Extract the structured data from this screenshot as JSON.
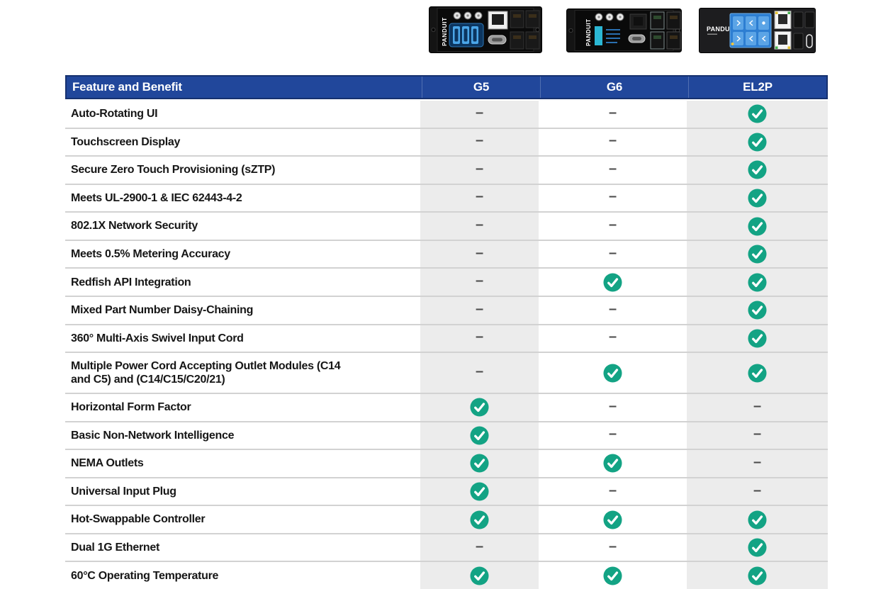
{
  "colors": {
    "page_bg": "#ffffff",
    "header_bg": "#21479b",
    "header_border": "#16316f",
    "header_text": "#ffffff",
    "row_alt_bg": "#ececec",
    "row_border": "#d2d2d2",
    "check_green": "#13a384",
    "check_mark": "#ffffff",
    "dash_color": "#4a4a4a",
    "feature_text": "#161616"
  },
  "icons": {
    "yes": "check-icon",
    "no": "dash-icon",
    "check_glyph": "✓",
    "dash_glyph": "–"
  },
  "products": [
    {
      "brand": "PANDUIT"
    },
    {
      "brand": "PANDUIT"
    },
    {
      "brand": "PANDUIT"
    }
  ],
  "table": {
    "header": {
      "feature": "Feature and Benefit",
      "columns": [
        "G5",
        "G6",
        "EL2P"
      ]
    },
    "rows": [
      {
        "feature": "Auto-Rotating UI",
        "values": [
          "no",
          "no",
          "yes"
        ]
      },
      {
        "feature": "Touchscreen Display",
        "values": [
          "no",
          "no",
          "yes"
        ]
      },
      {
        "feature": "Secure Zero Touch Provisioning (sZTP)",
        "values": [
          "no",
          "no",
          "yes"
        ]
      },
      {
        "feature": "Meets UL-2900-1 & IEC 62443-4-2",
        "values": [
          "no",
          "no",
          "yes"
        ]
      },
      {
        "feature": "802.1X Network Security",
        "values": [
          "no",
          "no",
          "yes"
        ]
      },
      {
        "feature": "Meets 0.5% Metering Accuracy",
        "values": [
          "no",
          "no",
          "yes"
        ]
      },
      {
        "feature": "Redfish API Integration",
        "values": [
          "no",
          "yes",
          "yes"
        ]
      },
      {
        "feature": "Mixed Part Number Daisy-Chaining",
        "values": [
          "no",
          "no",
          "yes"
        ]
      },
      {
        "feature": "360° Multi-Axis Swivel Input Cord",
        "values": [
          "no",
          "no",
          "yes"
        ]
      },
      {
        "feature": "Multiple Power Cord Accepting Outlet Modules (C14 and C5) and (C14/C15/C20/21)",
        "values": [
          "no",
          "yes",
          "yes"
        ],
        "tall": true
      },
      {
        "feature": "Horizontal Form Factor",
        "values": [
          "yes",
          "no",
          "no"
        ]
      },
      {
        "feature": "Basic Non-Network Intelligence",
        "values": [
          "yes",
          "no",
          "no"
        ]
      },
      {
        "feature": "NEMA Outlets",
        "values": [
          "yes",
          "yes",
          "no"
        ]
      },
      {
        "feature": "Universal Input Plug",
        "values": [
          "yes",
          "no",
          "no"
        ]
      },
      {
        "feature": "Hot-Swappable Controller",
        "values": [
          "yes",
          "yes",
          "yes"
        ]
      },
      {
        "feature": "Dual 1G Ethernet",
        "values": [
          "no",
          "no",
          "yes"
        ]
      },
      {
        "feature": "60°C Operating Temperature",
        "values": [
          "yes",
          "yes",
          "yes"
        ]
      }
    ]
  }
}
